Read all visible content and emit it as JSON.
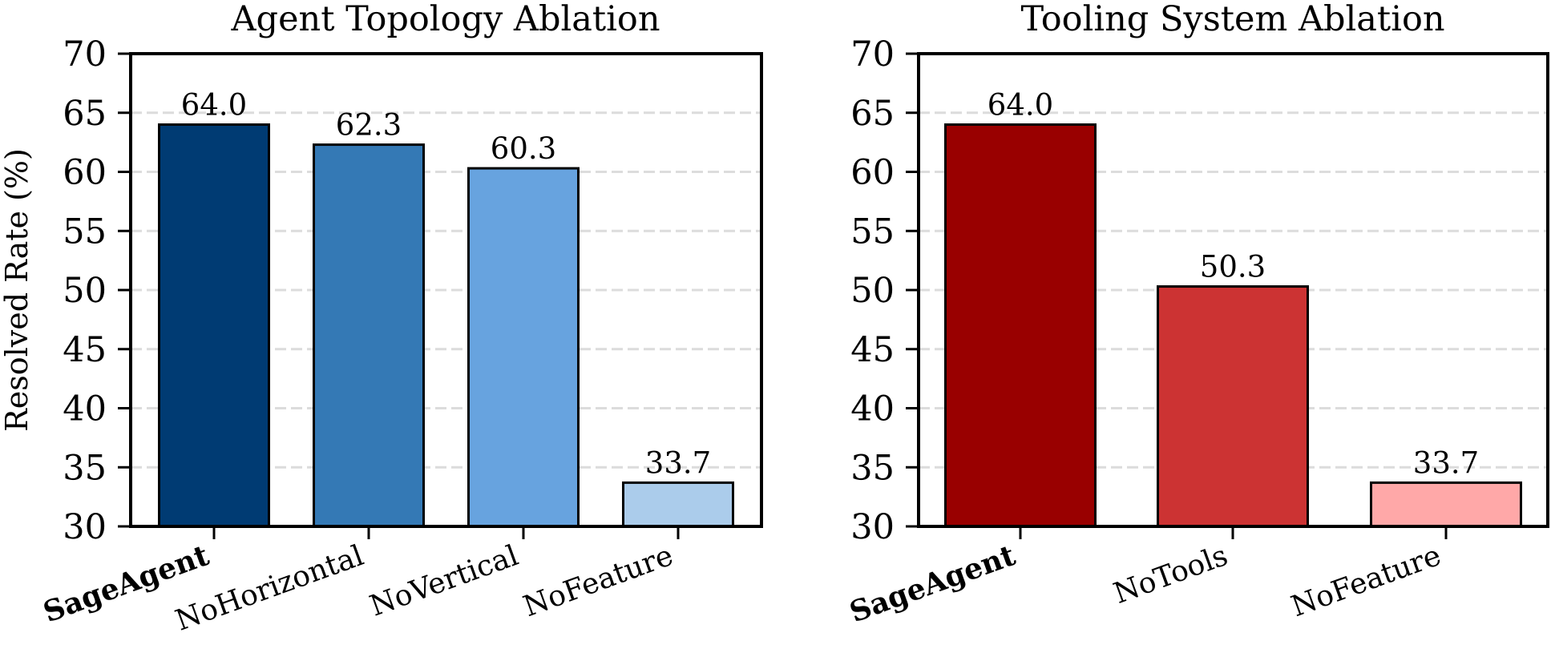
{
  "figure": {
    "ylabel": "Resolved Rate (%)"
  },
  "chart_data": [
    {
      "type": "bar",
      "title": "Agent Topology Ablation",
      "xlabel": "",
      "ylabel": "Resolved Rate (%)",
      "ylim": [
        30,
        70
      ],
      "yticks": [
        30,
        35,
        40,
        45,
        50,
        55,
        60,
        65,
        70
      ],
      "grid": "y-dashed",
      "categories": [
        "SageAgent",
        "NoHorizontal",
        "NoVertical",
        "NoFeature"
      ],
      "bold_categories": [
        "SageAgent"
      ],
      "values": [
        64.0,
        62.3,
        60.3,
        33.7
      ],
      "value_labels": [
        "64.0",
        "62.3",
        "60.3",
        "33.7"
      ],
      "colors": [
        "#003b73",
        "#3479b5",
        "#67a3df",
        "#abcceb"
      ]
    },
    {
      "type": "bar",
      "title": "Tooling System Ablation",
      "xlabel": "",
      "ylabel": "",
      "ylim": [
        30,
        70
      ],
      "yticks": [
        30,
        35,
        40,
        45,
        50,
        55,
        60,
        65,
        70
      ],
      "grid": "y-dashed",
      "categories": [
        "SageAgent",
        "NoTools",
        "NoFeature"
      ],
      "bold_categories": [
        "SageAgent"
      ],
      "values": [
        64.0,
        50.3,
        33.7
      ],
      "value_labels": [
        "64.0",
        "50.3",
        "33.7"
      ],
      "colors": [
        "#990000",
        "#cc3333",
        "#ffa8a8"
      ]
    }
  ]
}
